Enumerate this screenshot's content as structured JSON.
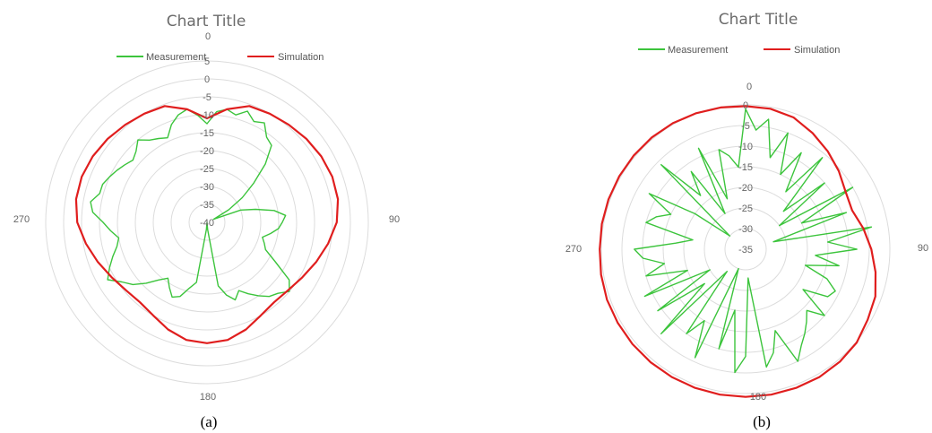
{
  "colors": {
    "measurement": "#3cc43c",
    "simulation": "#e01e1e",
    "grid": "#dcdcdc"
  },
  "chart_data": [
    {
      "type": "polar-line",
      "title": "Chart Title",
      "caption": "(a)",
      "legend": {
        "placement": "top",
        "entries": [
          "Measurement",
          "Simulation"
        ]
      },
      "radial_axis": {
        "ticks": [
          5,
          0,
          -5,
          -10,
          -15,
          -20,
          -25,
          -30,
          -35,
          -40
        ],
        "range": [
          -40,
          5
        ]
      },
      "angular_labels": [
        "0",
        "90",
        "180",
        "270"
      ],
      "angle_step_deg": 10,
      "series": [
        {
          "name": "Measurement",
          "values": [
            -12.5,
            -9,
            -8,
            -9,
            -7,
            -9,
            -8,
            -11,
            -12,
            -17,
            -23,
            -28,
            -33,
            -38,
            -30,
            -26,
            -21,
            -18,
            -19,
            -20,
            -22,
            -24,
            -23,
            -22,
            -18,
            -12,
            -10,
            -12,
            -13,
            -15,
            -17,
            -19,
            -17,
            -19,
            -22,
            -38,
            -40,
            -38,
            -23,
            -21,
            -18,
            -17,
            -19,
            -21,
            -19,
            -16,
            -13,
            -11,
            -8,
            -10,
            -12,
            -14,
            -15,
            -13,
            -11,
            -8,
            -7,
            -9,
            -9,
            -10,
            -11,
            -12,
            -13,
            -12,
            -10,
            -12,
            -13,
            -14,
            -11,
            -9,
            -8,
            -10,
            -12.5
          ]
        },
        {
          "name": "Simulation",
          "values": [
            -11,
            -8,
            -5.5,
            -5,
            -4.5,
            -3.8,
            -3.2,
            -2.8,
            -2.9,
            -3.8,
            -5.7,
            -7.6,
            -9.3,
            -10.5,
            -10.9,
            -10,
            -8.2,
            -6.7,
            -6.3,
            -6.7,
            -8.2,
            -10,
            -10.9,
            -10.5,
            -9.3,
            -7.6,
            -5.7,
            -3.8,
            -2.9,
            -2.8,
            -3.2,
            -3.8,
            -4.5,
            -5,
            -5.5,
            -8,
            -11
          ]
        }
      ]
    },
    {
      "type": "polar-line",
      "title": "Chart Title",
      "caption": "(b)",
      "legend": {
        "placement": "top",
        "entries": [
          "Measurement",
          "Simulation"
        ]
      },
      "radial_axis": {
        "ticks": [
          0,
          -5,
          -10,
          -15,
          -20,
          -25,
          -30,
          -35
        ],
        "range": [
          -35,
          0
        ]
      },
      "angular_labels": [
        "0",
        "90",
        "180",
        "270"
      ],
      "angle_step_deg": 10,
      "series": [
        {
          "name": "Measurement",
          "values": [
            -1,
            -6,
            -3,
            -12,
            -5,
            -15,
            -8,
            -18,
            -6,
            -22,
            -10,
            -25,
            -5,
            -20,
            -9,
            -28,
            -4,
            -15,
            -8,
            -18,
            -12,
            -20,
            -14,
            -11,
            -12,
            -18,
            -10,
            -14,
            -12,
            -10,
            -8,
            -5,
            -14,
            -9,
            -6,
            -28,
            -9,
            -5,
            -20,
            -10,
            -30,
            -6,
            -15,
            -10,
            -28,
            -6,
            -22,
            -9,
            -25,
            -8,
            -20,
            -10,
            -15,
            -10,
            -8,
            -18,
            -22,
            -10,
            -12,
            -15,
            -8,
            -20,
            -30,
            -6,
            -18,
            -12,
            -25,
            -8,
            -22,
            -10,
            -12,
            -15,
            -1
          ]
        },
        {
          "name": "Simulation",
          "values": [
            -0.3,
            -0.4,
            -1,
            -2.5,
            -4,
            -5.5,
            -7,
            -7.5,
            -6,
            -4.5,
            -3,
            -1.5,
            -0.8,
            0.2,
            0.6,
            0.8,
            0.8,
            0.8,
            0.8,
            0.8,
            0.8,
            0.8,
            0.8,
            0.8,
            0.8,
            0.8,
            0.6,
            0.4,
            0.4,
            0.4,
            0.4,
            0.4,
            0.4,
            0.3,
            0.1,
            -0.1,
            -0.3
          ]
        }
      ]
    }
  ]
}
